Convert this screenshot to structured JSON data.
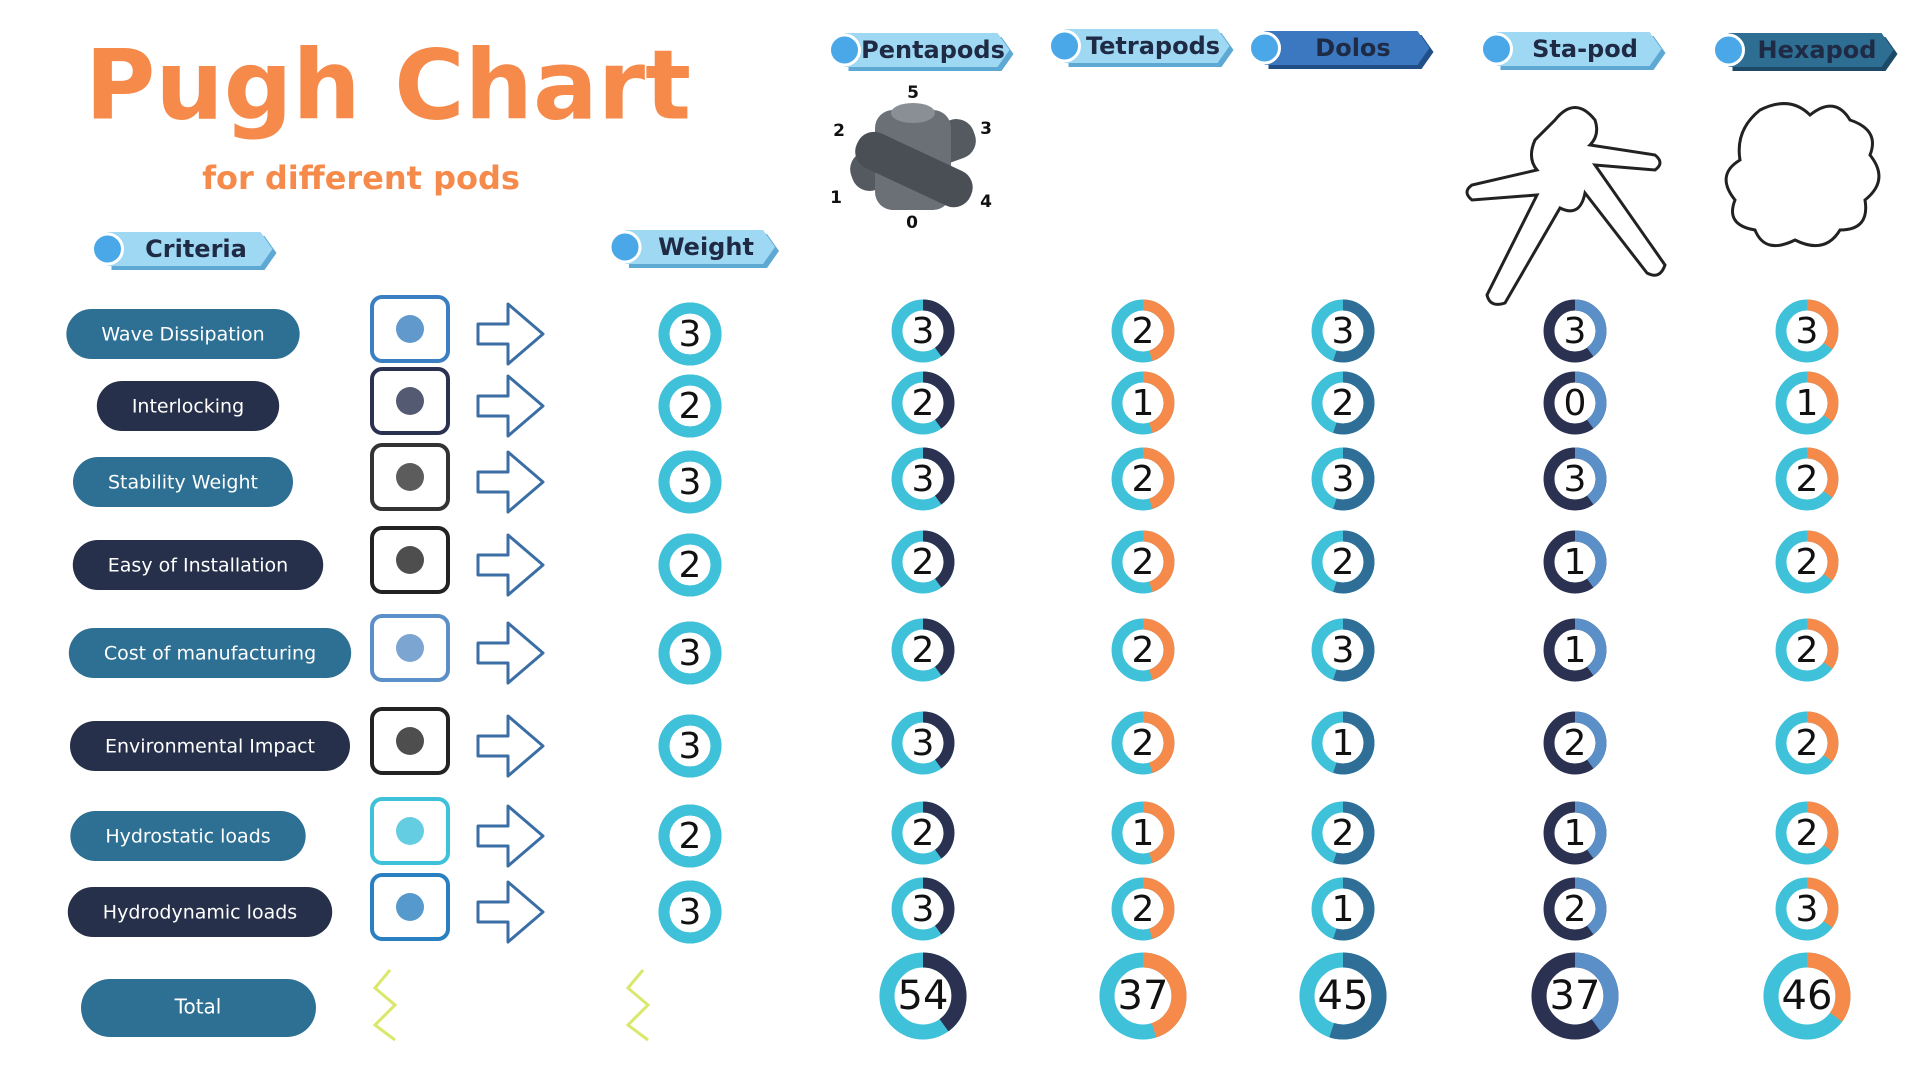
{
  "header": {
    "title": "Pugh Chart",
    "subtitle": "for different pods"
  },
  "table": {
    "criteria_heading": "Criteria",
    "weight_heading": "Weight",
    "designs": [
      "Pentapods",
      "Tetrapods",
      "Dolos",
      "Sta-pod",
      "Hexapod"
    ],
    "rows": [
      {
        "criterion": "Wave Dissipation",
        "weight": 3,
        "scores": [
          3,
          2,
          3,
          3,
          3
        ]
      },
      {
        "criterion": "Interlocking",
        "weight": 2,
        "scores": [
          2,
          1,
          2,
          0,
          1
        ]
      },
      {
        "criterion": "Stability Weight",
        "weight": 3,
        "scores": [
          3,
          2,
          3,
          3,
          2
        ]
      },
      {
        "criterion": "Easy of Installation",
        "weight": 2,
        "scores": [
          2,
          2,
          2,
          1,
          2
        ]
      },
      {
        "criterion": "Cost of manufacturing",
        "weight": 3,
        "scores": [
          2,
          2,
          3,
          1,
          2
        ]
      },
      {
        "criterion": "Environmental Impact",
        "weight": 3,
        "scores": [
          3,
          2,
          1,
          2,
          2
        ]
      },
      {
        "criterion": "Hydrostatic loads",
        "weight": 2,
        "scores": [
          2,
          1,
          2,
          1,
          2
        ]
      },
      {
        "criterion": "Hydrodynamic loads",
        "weight": 3,
        "scores": [
          3,
          2,
          1,
          2,
          3
        ]
      }
    ],
    "total_label": "Total",
    "totals": [
      54,
      37,
      45,
      37,
      46
    ]
  },
  "figure_labels": [
    "5",
    "2",
    "3",
    "1",
    "4",
    "0"
  ]
}
